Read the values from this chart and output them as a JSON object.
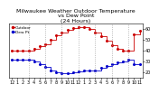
{
  "title": "Milwaukee Weather Outdoor Temperature\nvs Dew Point\n(24 Hours)",
  "temp_x": [
    0,
    1,
    2,
    3,
    4,
    5,
    6,
    7,
    8,
    9,
    10,
    11,
    12,
    13,
    14,
    15,
    16,
    17,
    18,
    19,
    20,
    21,
    22,
    23
  ],
  "temp_y": [
    40,
    40,
    40,
    40,
    42,
    44,
    46,
    50,
    54,
    57,
    59,
    61,
    62,
    62,
    60,
    57,
    53,
    49,
    45,
    42,
    40,
    40,
    55,
    58
  ],
  "dew_x": [
    0,
    1,
    2,
    3,
    4,
    5,
    6,
    7,
    8,
    9,
    10,
    11,
    12,
    13,
    14,
    15,
    16,
    17,
    18,
    19,
    20,
    21,
    22,
    23
  ],
  "dew_y": [
    32,
    32,
    32,
    32,
    30,
    28,
    25,
    22,
    20,
    19,
    19,
    20,
    21,
    22,
    22,
    22,
    24,
    26,
    28,
    29,
    30,
    32,
    28,
    28
  ],
  "temp_color": "#cc0000",
  "dew_color": "#0000cc",
  "bg_color": "#ffffff",
  "grid_color": "#999999",
  "ylim": [
    15,
    65
  ],
  "xlim": [
    -0.5,
    23.5
  ],
  "ytick_vals": [
    20,
    30,
    40,
    50,
    60
  ],
  "ytick_labels": [
    "20",
    "30",
    "40",
    "50",
    "60"
  ],
  "xtick_positions": [
    0,
    1,
    2,
    3,
    4,
    5,
    6,
    7,
    8,
    9,
    10,
    11,
    12,
    13,
    14,
    15,
    16,
    17,
    18,
    19,
    20,
    21,
    22,
    23
  ],
  "xtick_labels": [
    "12",
    "1",
    "2",
    "3",
    "4",
    "5",
    "6",
    "7",
    "8",
    "9",
    "10",
    "11",
    "12",
    "1",
    "2",
    "3",
    "4",
    "5",
    "6",
    "7",
    "8",
    "9",
    "10",
    "11"
  ],
  "vline_positions": [
    3,
    6,
    9,
    12,
    15,
    18,
    21
  ],
  "legend_temp": "Outdoor",
  "legend_dew": "Dew Pt",
  "title_fontsize": 4.5,
  "tick_fontsize": 3.5,
  "legend_fontsize": 3.2,
  "markersize": 1.2,
  "linewidth": 0.6,
  "step_where": "post"
}
